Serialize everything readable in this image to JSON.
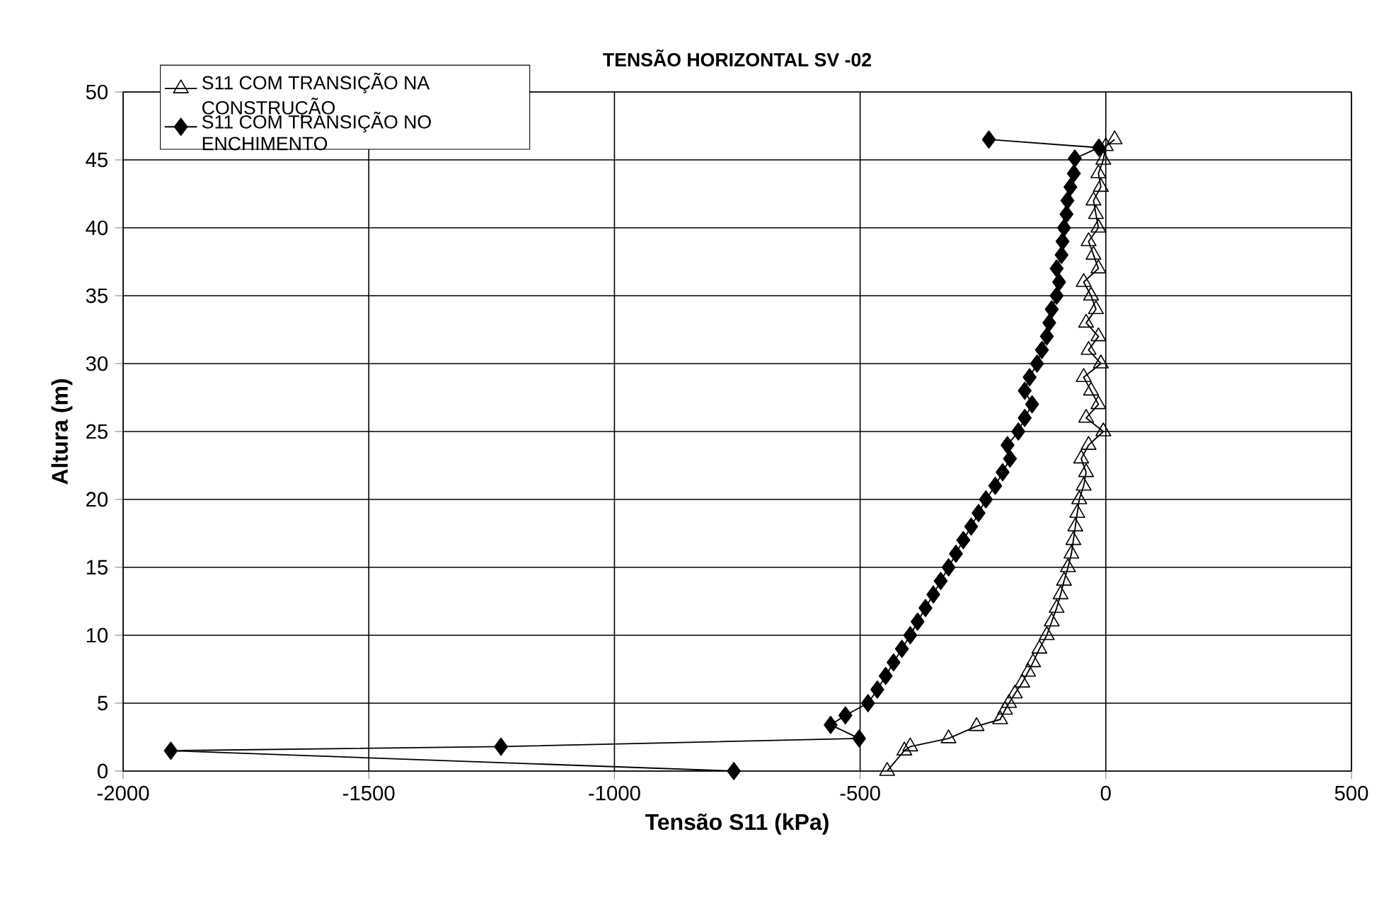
{
  "chart_data": {
    "type": "line",
    "title": "TENSÃO HORIZONTAL SV -02",
    "xlabel": "Tensão S11 (kPa)",
    "ylabel": "Altura (m)",
    "xlim": [
      -2000,
      500
    ],
    "ylim": [
      0,
      50
    ],
    "xticks": [
      -2000,
      -1500,
      -1000,
      -500,
      0,
      500
    ],
    "yticks": [
      0,
      5,
      10,
      15,
      20,
      25,
      30,
      35,
      40,
      45,
      50
    ],
    "grid": true,
    "legend": "top left",
    "series": [
      {
        "name": "S11 COM TRANSIÇÃO NA CONSTRUÇÃO",
        "color": "#000000",
        "marker": "triangle",
        "x": [
          -445,
          -410,
          -398,
          -320,
          -263,
          -215,
          -205,
          -197,
          -185,
          -170,
          -158,
          -148,
          -135,
          -120,
          -110,
          -100,
          -92,
          -85,
          -77,
          -70,
          -66,
          -62,
          -58,
          -54,
          -45,
          -40,
          -50,
          -35,
          -5,
          -40,
          -15,
          -30,
          -45,
          -10,
          -35,
          -15,
          -40,
          -20,
          -30,
          -45,
          -15,
          -25,
          -35,
          -15,
          -20,
          -25,
          -10,
          -15,
          -5,
          0,
          18
        ],
        "values": [
          0,
          1.5,
          1.8,
          2.4,
          3.3,
          3.8,
          4.5,
          5,
          5.7,
          6.5,
          7.3,
          8,
          9,
          10,
          11,
          12,
          13,
          14,
          15,
          16,
          17,
          18,
          19,
          20,
          21,
          22,
          23,
          24,
          25,
          26,
          27,
          28,
          29,
          30,
          31,
          32,
          33,
          34,
          35,
          36,
          37,
          38,
          39,
          40,
          41,
          42,
          43,
          44,
          45,
          46,
          46.5
        ]
      },
      {
        "name": "S11 COM TRANSIÇÃO NO ENCHIMENTO",
        "color": "#000000",
        "marker": "diamond",
        "x": [
          -757,
          -1903,
          -1231,
          -502,
          -560,
          -530,
          -484,
          -465,
          -448,
          -432,
          -415,
          -398,
          -383,
          -367,
          -351,
          -336,
          -320,
          -305,
          -290,
          -274,
          -259,
          -244,
          -225,
          -210,
          -195,
          -200,
          -178,
          -165,
          -150,
          -165,
          -155,
          -140,
          -130,
          -120,
          -115,
          -110,
          -100,
          -95,
          -100,
          -90,
          -88,
          -85,
          -80,
          -78,
          -72,
          -65,
          -63,
          -14,
          -238
        ],
        "values": [
          0,
          1.5,
          1.8,
          2.4,
          3.4,
          4.1,
          5,
          6,
          7,
          8,
          9,
          10,
          11,
          12,
          13,
          14,
          15,
          16,
          17,
          18,
          19,
          20,
          21,
          22,
          23,
          24,
          25,
          26,
          27,
          28,
          29,
          30,
          31,
          32,
          33,
          34,
          35,
          36,
          37,
          38,
          39,
          40,
          41,
          42,
          43,
          44,
          45.1,
          45.9,
          46.5
        ]
      }
    ]
  }
}
